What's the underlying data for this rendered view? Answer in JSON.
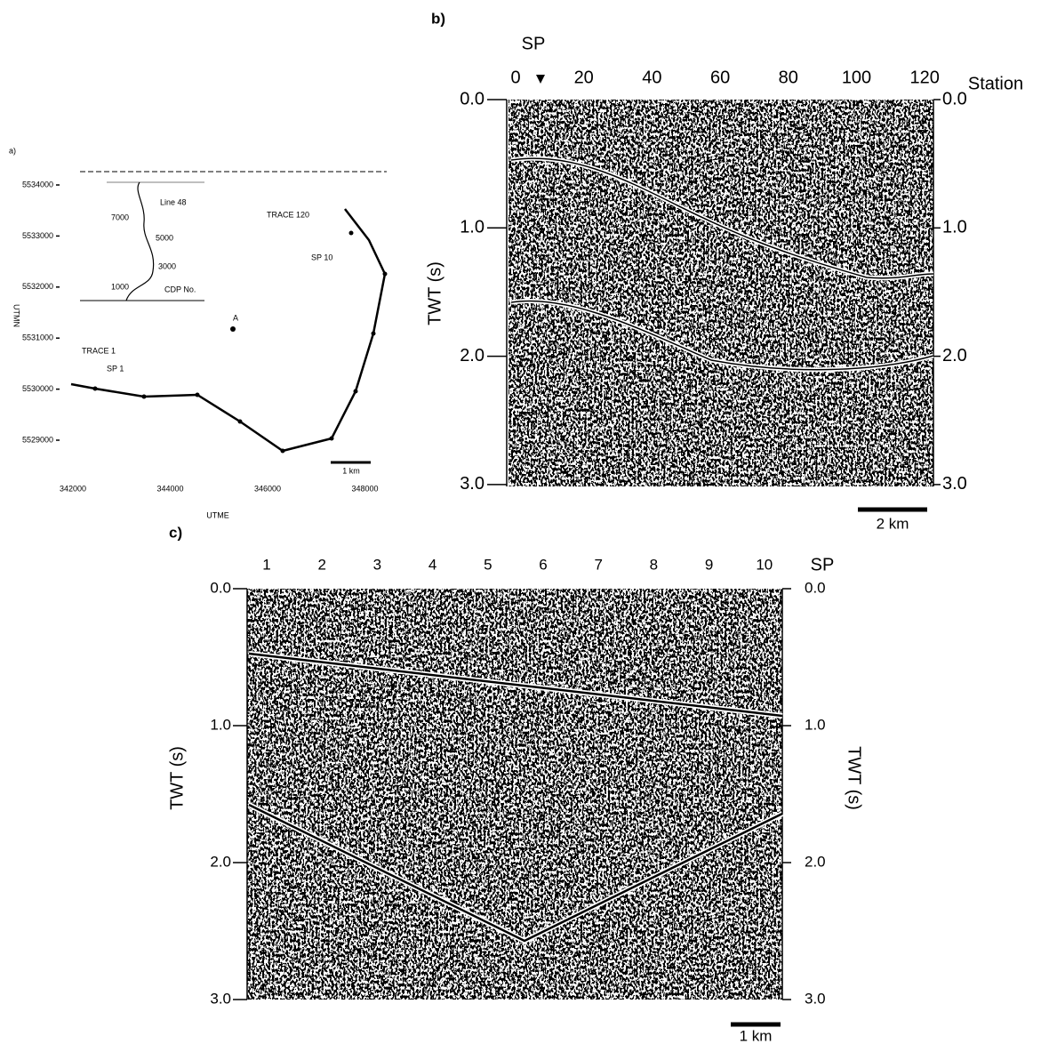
{
  "panel_a": {
    "label": "a)",
    "y_axis_title": "UTMN",
    "x_axis_title": "UTME",
    "y_ticks": [
      "5534000",
      "5533000",
      "5532000",
      "5531000",
      "5530000",
      "5529000"
    ],
    "x_ticks": [
      "342000",
      "344000",
      "346000",
      "348000"
    ],
    "annotations": [
      "TRACE 120",
      "SP 10",
      "TRACE 1",
      "SP 1",
      "A"
    ],
    "inset": {
      "title": "Line 48",
      "labels": [
        "7000",
        "5000",
        "3000",
        "1000"
      ],
      "legend": "CDP No."
    },
    "scale": "1 km"
  },
  "panel_b": {
    "label": "b)",
    "top_title": "SP",
    "x_axis_title": "Station",
    "y_axis_title": "TWT (s)",
    "x_ticks": [
      "0",
      "20",
      "40",
      "60",
      "80",
      "100",
      "120"
    ],
    "y_ticks": [
      "0.0",
      "1.0",
      "2.0",
      "3.0"
    ],
    "scale": "2 km"
  },
  "panel_c": {
    "label": "c)",
    "x_axis_title": "SP",
    "y_axis_title": "TWT (s)",
    "right_axis_title": "TWT (s)",
    "x_ticks": [
      "1",
      "2",
      "3",
      "4",
      "5",
      "6",
      "7",
      "8",
      "9",
      "10"
    ],
    "y_ticks": [
      "0.0",
      "1.0",
      "2.0",
      "3.0"
    ],
    "scale": "1 km"
  }
}
